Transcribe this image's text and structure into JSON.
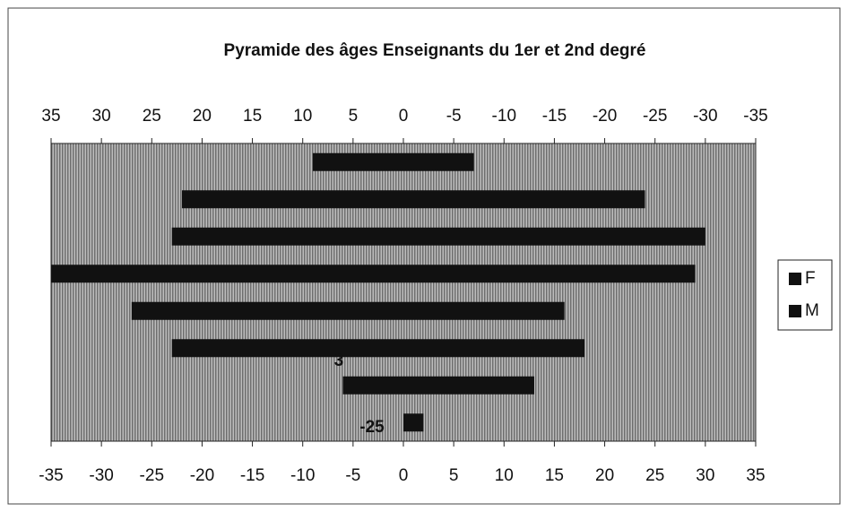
{
  "chart_data": {
    "type": "pyramid",
    "title": "Pyramide des âges Enseignants du 1er et 2nd degré",
    "categories": [
      null,
      null,
      null,
      null,
      null,
      null,
      null,
      null
    ],
    "series": [
      {
        "name": "F",
        "color": "#111111",
        "values": [
          -9,
          -22,
          -23,
          -35,
          -27,
          -23,
          -6,
          0
        ]
      },
      {
        "name": "M",
        "color": "#111111",
        "values": [
          7,
          24,
          30,
          29,
          16,
          18,
          13,
          2
        ]
      }
    ],
    "xlim": [
      -35,
      35
    ],
    "xticks": [
      -35,
      -30,
      -25,
      -20,
      -15,
      -10,
      -5,
      0,
      5,
      10,
      15,
      20,
      25,
      30,
      35
    ],
    "x2lim": [
      35,
      -35
    ],
    "x2ticks": [
      35,
      30,
      25,
      20,
      15,
      10,
      5,
      0,
      -5,
      -10,
      -15,
      -20,
      -25,
      -30,
      -35
    ],
    "annotations": [
      "3",
      "-25"
    ],
    "legend": "right"
  }
}
